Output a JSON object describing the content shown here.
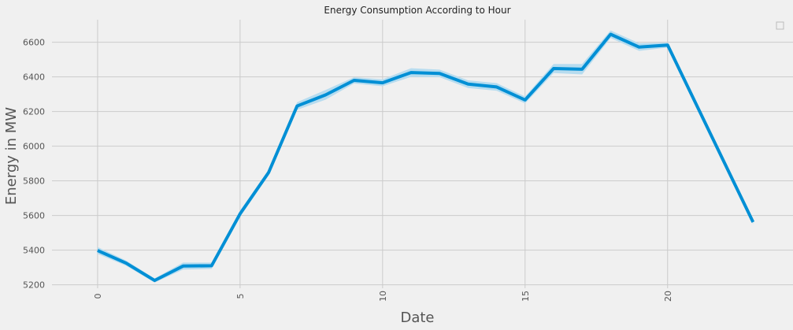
{
  "chart_data": {
    "type": "line",
    "title": "Energy Consumption According to Hour",
    "xlabel": "Date",
    "ylabel": "Energy in MW",
    "xlim": [
      -1.6,
      24.4
    ],
    "ylim": [
      5180,
      6730
    ],
    "xticks": [
      0,
      5,
      10,
      15,
      20
    ],
    "yticks": [
      5200,
      5400,
      5600,
      5800,
      6000,
      6200,
      6400,
      6600
    ],
    "grid": true,
    "legend": "top-right (empty)",
    "series": [
      {
        "x": [
          0,
          1,
          2,
          3,
          4,
          5,
          6,
          7,
          8,
          9,
          10,
          11,
          12,
          13,
          14,
          15,
          16,
          17,
          18,
          19,
          20,
          23
        ],
        "values": [
          5398,
          5325,
          5225,
          5308,
          5310,
          5610,
          5848,
          6232,
          6296,
          6380,
          6366,
          6425,
          6420,
          6358,
          6342,
          6267,
          6448,
          6444,
          6646,
          6572,
          6583,
          5562
        ],
        "ci_width": [
          20,
          15,
          12,
          20,
          18,
          18,
          16,
          22,
          28,
          18,
          20,
          25,
          22,
          22,
          22,
          20,
          26,
          30,
          22,
          22,
          14,
          12
        ],
        "color": "#008fd5",
        "band_color": "#b7dcef"
      }
    ]
  }
}
